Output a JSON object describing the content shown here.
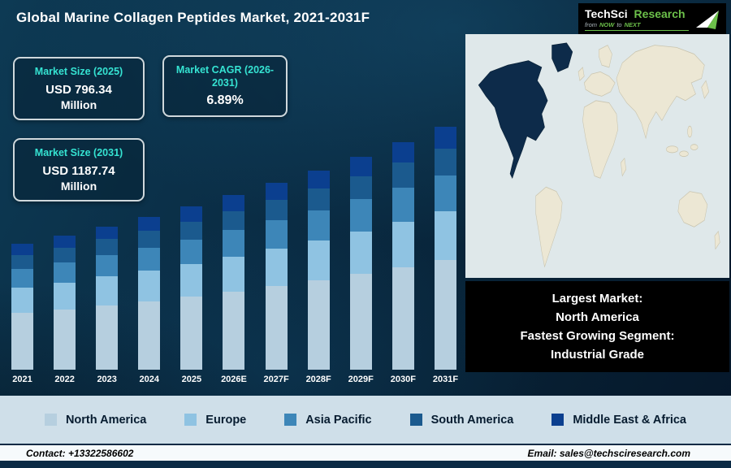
{
  "header": {
    "title": "Global Marine Collagen Peptides Market, 2021-2031F",
    "logo": {
      "brand_primary": "TechSci",
      "brand_secondary": "Research",
      "tagline_prefix": "from",
      "tagline_now": "NOW",
      "tagline_mid": "to",
      "tagline_next": "NEXT"
    }
  },
  "stats": [
    {
      "label": "Market Size (2025)",
      "value": "USD 796.34",
      "unit": "Million"
    },
    {
      "label": "Market CAGR (2026-2031)",
      "value": "6.89%"
    },
    {
      "label": "Market Size (2031)",
      "value": "USD 1187.74",
      "unit": "Million"
    }
  ],
  "chart_data": {
    "type": "bar",
    "stacked": true,
    "title": "Global Marine Collagen Peptides Market, 2021-2031F",
    "unit": "USD Million",
    "categories": [
      "2021",
      "2022",
      "2023",
      "2024",
      "2025",
      "2026E",
      "2027F",
      "2028F",
      "2029F",
      "2030F",
      "2031F"
    ],
    "series": [
      {
        "name": "North America",
        "color": "#b6cfdf",
        "values": [
          277,
          295,
          315,
          335,
          358,
          383,
          410,
          438,
          468,
          500,
          534
        ]
      },
      {
        "name": "Europe",
        "color": "#8fc3e2",
        "values": [
          123,
          131,
          140,
          149,
          159,
          170,
          182,
          195,
          208,
          222,
          238
        ]
      },
      {
        "name": "Asia Pacific",
        "color": "#3d86b8",
        "values": [
          92,
          98,
          105,
          112,
          119,
          128,
          137,
          146,
          156,
          167,
          178
        ]
      },
      {
        "name": "South America",
        "color": "#1b5a8e",
        "values": [
          68,
          72,
          77,
          82,
          88,
          94,
          100,
          107,
          114,
          122,
          131
        ]
      },
      {
        "name": "Middle East & Africa",
        "color": "#0b3f8f",
        "values": [
          55,
          59,
          63,
          67,
          72,
          77,
          82,
          88,
          94,
          100,
          107
        ]
      }
    ],
    "totals_note": "Totals: 2025 = 796.34 USD Million, 2031 = 1187.74 USD Million, CAGR (2026-2031) = 6.89%",
    "ylim": [
      0,
      1250
    ],
    "grid": false,
    "legend_position": "bottom"
  },
  "map": {
    "highlight_region": "North America"
  },
  "map_callout": {
    "lines": [
      "Largest Market:",
      "North America",
      "Fastest Growing Segment:",
      "Industrial Grade"
    ]
  },
  "footer": {
    "contact": "Contact: +13322586602",
    "email": "Email: sales@techsciresearch.com"
  },
  "colors": {
    "background_navy": "#0a2c44",
    "accent_teal": "#35e3d2",
    "legend_bg": "#cfdfe9",
    "callout_bg": "#000000",
    "map_land": "#ece7d4",
    "map_highlight": "#0d2b4a",
    "logo_green": "#6cc04a"
  }
}
